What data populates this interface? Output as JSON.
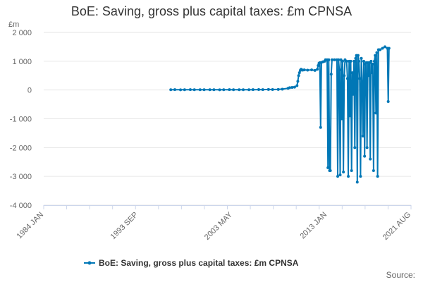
{
  "chart_data": {
    "type": "line",
    "title": "BoE: Saving, gross plus capital taxes: £m CPNSA",
    "ylabel": "£m",
    "xlabel": "",
    "ylim": [
      -4000,
      2000
    ],
    "yticks": [
      -4000,
      -3000,
      -2000,
      -1000,
      0,
      1000,
      2000
    ],
    "ytick_labels": [
      "-4 000",
      "-3 000",
      "-2 000",
      "-1 000",
      "0",
      "1 000",
      "2 000"
    ],
    "xlim": [
      "1984 JAN",
      "2021 AUG"
    ],
    "xticks": [
      "1984 JAN",
      "1993 SEP",
      "2003 MAY",
      "2013 JAN",
      "2021 AUG"
    ],
    "grid": "horizontal",
    "legend_position": "bottom",
    "credits": "Source:",
    "color": "#0077b6",
    "series": [
      {
        "name": "BoE: Saving, gross plus capital taxes: £m CPNSA",
        "points": [
          [
            "1997-01",
            10
          ],
          [
            "1997-06",
            12
          ],
          [
            "1998-01",
            8
          ],
          [
            "1998-06",
            10
          ],
          [
            "1999-01",
            12
          ],
          [
            "1999-06",
            9
          ],
          [
            "2000-01",
            10
          ],
          [
            "2000-06",
            11
          ],
          [
            "2001-01",
            9
          ],
          [
            "2001-06",
            10
          ],
          [
            "2002-01",
            8
          ],
          [
            "2002-06",
            10
          ],
          [
            "2003-01",
            12
          ],
          [
            "2003-06",
            10
          ],
          [
            "2004-01",
            9
          ],
          [
            "2004-06",
            11
          ],
          [
            "2005-01",
            10
          ],
          [
            "2005-06",
            12
          ],
          [
            "2006-01",
            15
          ],
          [
            "2006-06",
            14
          ],
          [
            "2007-01",
            18
          ],
          [
            "2007-06",
            16
          ],
          [
            "2008-01",
            20
          ],
          [
            "2008-06",
            30
          ],
          [
            "2009-01",
            60
          ],
          [
            "2009-03",
            80
          ],
          [
            "2009-06",
            90
          ],
          [
            "2009-09",
            100
          ],
          [
            "2009-12",
            150
          ],
          [
            "2010-01",
            300
          ],
          [
            "2010-02",
            500
          ],
          [
            "2010-03",
            600
          ],
          [
            "2010-04",
            680
          ],
          [
            "2010-05",
            720
          ],
          [
            "2010-06",
            700
          ],
          [
            "2010-07",
            690
          ],
          [
            "2010-09",
            700
          ],
          [
            "2011-01",
            690
          ],
          [
            "2011-06",
            700
          ],
          [
            "2011-10",
            680
          ],
          [
            "2012-01",
            720
          ],
          [
            "2012-02",
            850
          ],
          [
            "2012-03",
            930
          ],
          [
            "2012-04",
            950
          ],
          [
            "2012-05",
            -1300
          ],
          [
            "2012-06",
            960
          ],
          [
            "2012-08",
            980
          ],
          [
            "2012-10",
            1000
          ],
          [
            "2012-11",
            1050
          ],
          [
            "2013-01",
            1050
          ],
          [
            "2013-02",
            -2700
          ],
          [
            "2013-03",
            1050
          ],
          [
            "2013-04",
            -2800
          ],
          [
            "2013-05",
            -2800
          ],
          [
            "2013-06",
            550
          ],
          [
            "2013-07",
            1050
          ],
          [
            "2013-10",
            1050
          ],
          [
            "2014-01",
            1050
          ],
          [
            "2014-02",
            -3000
          ],
          [
            "2014-03",
            1050
          ],
          [
            "2014-04",
            700
          ],
          [
            "2014-05",
            -2950
          ],
          [
            "2014-06",
            1050
          ],
          [
            "2014-07",
            -1000
          ],
          [
            "2014-08",
            1000
          ],
          [
            "2014-09",
            -2850
          ],
          [
            "2014-10",
            500
          ],
          [
            "2014-11",
            1050
          ],
          [
            "2015-01",
            1000
          ],
          [
            "2015-02",
            400
          ],
          [
            "2015-03",
            -3000
          ],
          [
            "2015-04",
            1000
          ],
          [
            "2015-05",
            -900
          ],
          [
            "2015-06",
            1000
          ],
          [
            "2015-07",
            -2800
          ],
          [
            "2015-08",
            600
          ],
          [
            "2015-09",
            -150
          ],
          [
            "2015-10",
            1000
          ],
          [
            "2015-11",
            -2000
          ],
          [
            "2015-12",
            1100
          ],
          [
            "2016-01",
            1200
          ],
          [
            "2016-02",
            -3200
          ],
          [
            "2016-03",
            1200
          ],
          [
            "2016-04",
            1000
          ],
          [
            "2016-05",
            400
          ],
          [
            "2016-06",
            -3000
          ],
          [
            "2016-07",
            1100
          ],
          [
            "2016-08",
            300
          ],
          [
            "2016-09",
            -1600
          ],
          [
            "2016-10",
            1000
          ],
          [
            "2016-11",
            -2300
          ],
          [
            "2016-12",
            900
          ],
          [
            "2017-01",
            950
          ],
          [
            "2017-02",
            -2000
          ],
          [
            "2017-03",
            950
          ],
          [
            "2017-04",
            500
          ],
          [
            "2017-05",
            950
          ],
          [
            "2017-06",
            -2400
          ],
          [
            "2017-07",
            1000
          ],
          [
            "2017-08",
            600
          ],
          [
            "2017-09",
            900
          ],
          [
            "2017-10",
            -2800
          ],
          [
            "2017-11",
            1000
          ],
          [
            "2017-12",
            1200
          ],
          [
            "2018-01",
            -800
          ],
          [
            "2018-02",
            1300
          ],
          [
            "2018-03",
            -3000
          ],
          [
            "2018-04",
            1400
          ],
          [
            "2018-06",
            1400
          ],
          [
            "2018-09",
            1450
          ],
          [
            "2018-12",
            1500
          ],
          [
            "2019-03",
            1450
          ],
          [
            "2019-04",
            -400
          ],
          [
            "2019-05",
            1450
          ]
        ]
      }
    ]
  }
}
